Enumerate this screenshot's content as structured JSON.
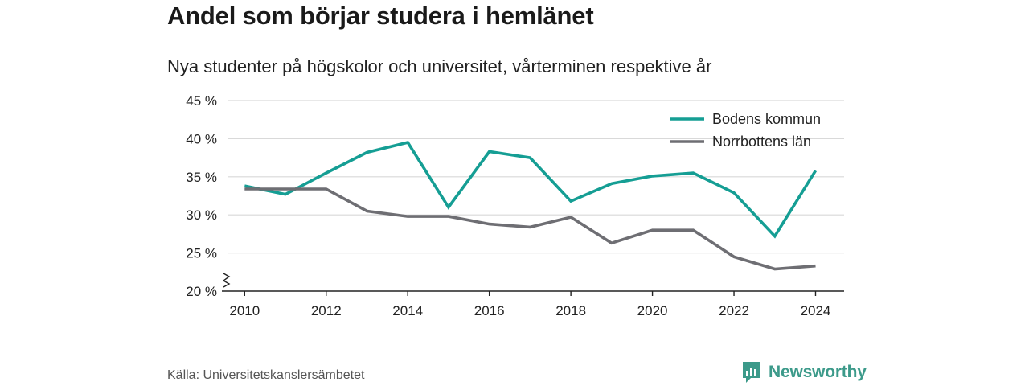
{
  "title": "Andel som börjar studera i hemlänet",
  "subtitle": "Nya studenter på högskolor och universitet, vårterminen respektive år",
  "source": "Källa: Universitetskanslersämbetet",
  "brand": {
    "name": "Newsworthy",
    "icon": "newsworthy-logo-icon",
    "color": "#3c9a8a"
  },
  "chart_data": {
    "type": "line",
    "title": "Andel som börjar studera i hemlänet",
    "subtitle": "Nya studenter på högskolor och universitet, vårterminen respektive år",
    "x": [
      2010,
      2011,
      2012,
      2013,
      2014,
      2015,
      2016,
      2017,
      2018,
      2019,
      2020,
      2021,
      2022,
      2023,
      2024
    ],
    "x_ticks": [
      2010,
      2012,
      2014,
      2016,
      2018,
      2020,
      2022,
      2024
    ],
    "y_ticks": [
      {
        "value": 20,
        "label": "20 %"
      },
      {
        "value": 25,
        "label": "25 %"
      },
      {
        "value": 30,
        "label": "30 %"
      },
      {
        "value": 35,
        "label": "35 %"
      },
      {
        "value": 40,
        "label": "40 %"
      },
      {
        "value": 45,
        "label": "45 %"
      }
    ],
    "ylim": [
      20,
      45
    ],
    "xlim": [
      2009.6,
      2024.7
    ],
    "y_axis_break": true,
    "grid": "horizontal",
    "legend_position": "top-right",
    "series": [
      {
        "name": "Bodens kommun",
        "color": "#159e94",
        "values": [
          33.8,
          32.7,
          35.5,
          38.2,
          39.5,
          31.0,
          38.3,
          37.5,
          31.8,
          34.1,
          35.1,
          35.5,
          32.9,
          27.2,
          35.8
        ]
      },
      {
        "name": "Norrbottens län",
        "color": "#6e6e73",
        "values": [
          33.4,
          33.4,
          33.4,
          30.5,
          29.8,
          29.8,
          28.8,
          28.4,
          29.7,
          26.3,
          28.0,
          28.0,
          24.5,
          22.9,
          23.3
        ]
      }
    ]
  }
}
